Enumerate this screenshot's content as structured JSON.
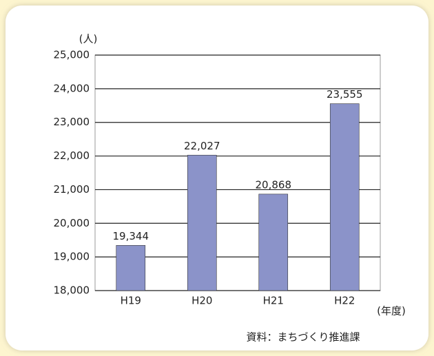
{
  "chart_data": {
    "type": "bar",
    "y_axis_label": "(人)",
    "x_axis_label": "(年度)",
    "source": "資料：まちづくり推進課",
    "categories": [
      "H19",
      "H20",
      "H21",
      "H22"
    ],
    "values": [
      19344,
      22027,
      20868,
      23555
    ],
    "value_labels": [
      "19,344",
      "22,027",
      "20,868",
      "23,555"
    ],
    "color": "#8b93c9",
    "ylim": [
      18000,
      25000
    ],
    "yticks": [
      {
        "value": 18000,
        "label": "18,000"
      },
      {
        "value": 19000,
        "label": "19,000"
      },
      {
        "value": 20000,
        "label": "20,000"
      },
      {
        "value": 21000,
        "label": "21,000"
      },
      {
        "value": 22000,
        "label": "22,000"
      },
      {
        "value": 23000,
        "label": "23,000"
      },
      {
        "value": 24000,
        "label": "24,000"
      },
      {
        "value": 25000,
        "label": "25,000"
      }
    ],
    "grid": true
  }
}
